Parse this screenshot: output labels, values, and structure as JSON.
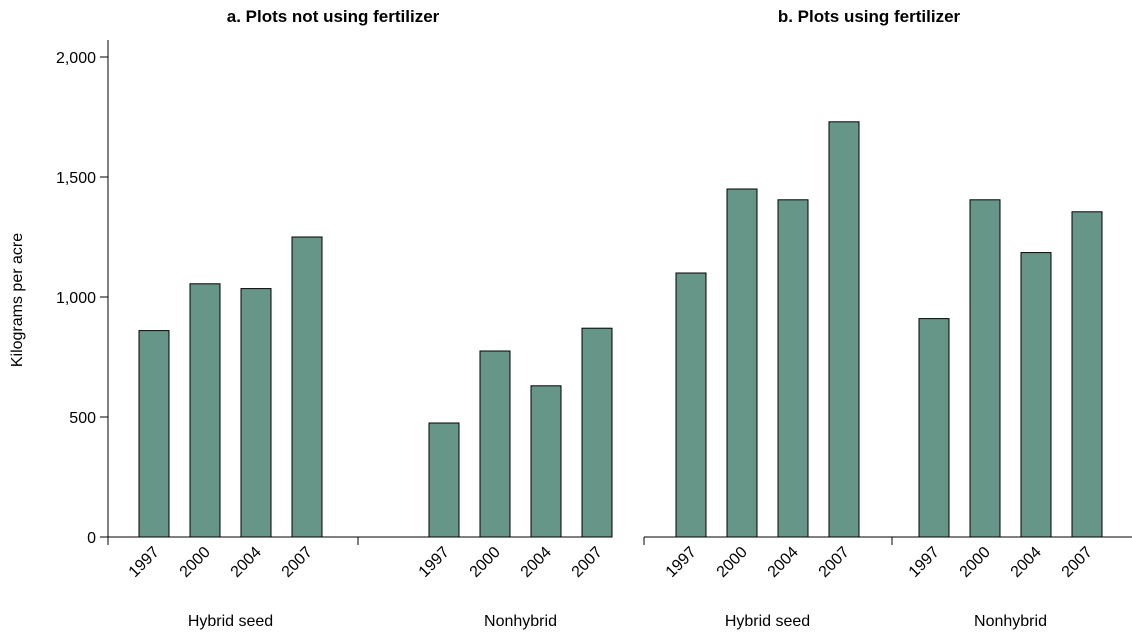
{
  "chart_data": {
    "type": "bar",
    "ylabel": "Kilograms per acre",
    "ylim": [
      0,
      2000
    ],
    "yticks": [
      0,
      500,
      1000,
      1500,
      2000
    ],
    "ytick_labels": [
      "0",
      "500",
      "1,000",
      "1,500",
      "2,000"
    ],
    "bar_color": "#669688",
    "grid": false,
    "panels": [
      {
        "title": "a. Plots not using fertilizer",
        "groups": [
          {
            "name": "Hybrid seed",
            "categories": [
              "1997",
              "2000",
              "2004",
              "2007"
            ],
            "values": [
              860,
              1055,
              1035,
              1250
            ]
          },
          {
            "name": "Nonhybrid",
            "categories": [
              "1997",
              "2000",
              "2004",
              "2007"
            ],
            "values": [
              475,
              775,
              630,
              870
            ]
          }
        ]
      },
      {
        "title": "b. Plots using fertilizer",
        "groups": [
          {
            "name": "Hybrid seed",
            "categories": [
              "1997",
              "2000",
              "2004",
              "2007"
            ],
            "values": [
              1100,
              1450,
              1405,
              1730
            ]
          },
          {
            "name": "Nonhybrid",
            "categories": [
              "1997",
              "2000",
              "2004",
              "2007"
            ],
            "values": [
              910,
              1405,
              1185,
              1355
            ]
          }
        ]
      }
    ]
  }
}
